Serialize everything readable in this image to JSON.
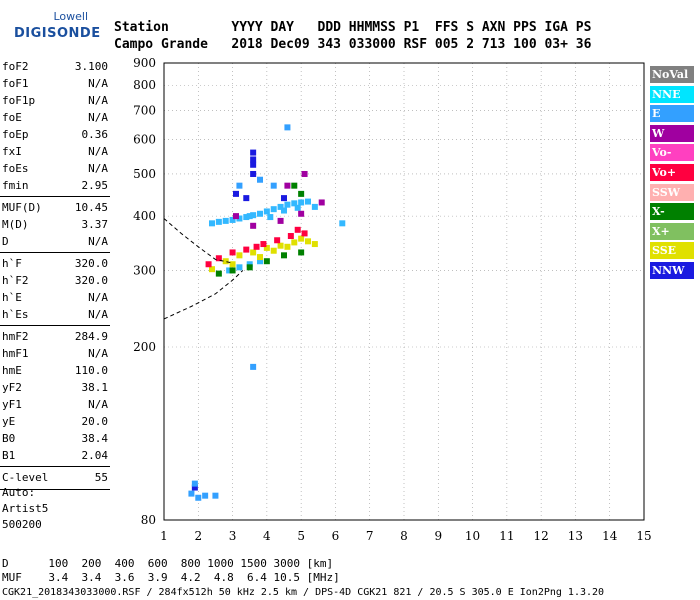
{
  "logo": {
    "line1": "Lowell",
    "line2": "DIGISONDE"
  },
  "header": {
    "row1": "Station        YYYY DAY   DDD HHMMSS P1  FFS S AXN PPS IGA PS",
    "row2": "Campo Grande   2018 Dec09 343 033000 RSF 005 2 713 100 03+ 36"
  },
  "params": [
    {
      "group": 1,
      "name": "foF2",
      "value": "3.100"
    },
    {
      "group": 1,
      "name": "foF1",
      "value": "N/A"
    },
    {
      "group": 1,
      "name": "foF1p",
      "value": "N/A"
    },
    {
      "group": 1,
      "name": "foE",
      "value": "N/A"
    },
    {
      "group": 1,
      "name": "foEp",
      "value": "0.36"
    },
    {
      "group": 1,
      "name": "fxI",
      "value": "N/A"
    },
    {
      "group": 1,
      "name": "foEs",
      "value": "N/A"
    },
    {
      "group": 1,
      "name": "fmin",
      "value": "2.95"
    },
    {
      "group": 2,
      "name": "MUF(D)",
      "value": "10.45"
    },
    {
      "group": 2,
      "name": "M(D)",
      "value": "3.37"
    },
    {
      "group": 2,
      "name": "D",
      "value": "N/A"
    },
    {
      "group": 3,
      "name": "h`F",
      "value": "320.0"
    },
    {
      "group": 3,
      "name": "h`F2",
      "value": "320.0"
    },
    {
      "group": 3,
      "name": "h`E",
      "value": "N/A"
    },
    {
      "group": 3,
      "name": "h`Es",
      "value": "N/A"
    },
    {
      "group": 4,
      "name": "hmF2",
      "value": "284.9"
    },
    {
      "group": 4,
      "name": "hmF1",
      "value": "N/A"
    },
    {
      "group": 4,
      "name": "hmE",
      "value": "110.0"
    },
    {
      "group": 4,
      "name": "yF2",
      "value": "38.1"
    },
    {
      "group": 4,
      "name": "yF1",
      "value": "N/A"
    },
    {
      "group": 4,
      "name": "yE",
      "value": "20.0"
    },
    {
      "group": 4,
      "name": "B0",
      "value": "38.4"
    },
    {
      "group": 4,
      "name": "B1",
      "value": "2.04"
    },
    {
      "group": 5,
      "name": "C-level",
      "value": "55"
    }
  ],
  "auto": [
    "Auto:",
    "Artist5",
    "500200"
  ],
  "legend": [
    {
      "label": "NoVal",
      "color": "#808080"
    },
    {
      "label": "NNE",
      "color": "#00e5ff"
    },
    {
      "label": "E",
      "color": "#33a0ff"
    },
    {
      "label": "W",
      "color": "#a000a0"
    },
    {
      "label": "Vo-",
      "color": "#ff40c0"
    },
    {
      "label": "Vo+",
      "color": "#ff0040"
    },
    {
      "label": "SSW",
      "color": "#ffb0b0"
    },
    {
      "label": "X-",
      "color": "#008000"
    },
    {
      "label": "X+",
      "color": "#80c060"
    },
    {
      "label": "SSE",
      "color": "#e0e000"
    },
    {
      "label": "NNW",
      "color": "#1a1ae0"
    }
  ],
  "footer": {
    "row1": "D      100  200  400  600  800 1000 1500 3000 [km]",
    "row2": "MUF    3.4  3.4  3.6  3.9  4.2  4.8  6.4 10.5 [MHz]",
    "row3": "CGK21_2018343033000.RSF / 284fx512h 50 kHz 2.5 km / DPS-4D CGK21 821 / 20.5 S 305.0 E Ion2Png 1.3.20"
  },
  "chart_data": {
    "type": "scatter",
    "title": "",
    "xlabel": "",
    "ylabel": "",
    "xlim": [
      1,
      15
    ],
    "ylim": [
      80,
      900
    ],
    "x_ticks": [
      1,
      2,
      3,
      4,
      5,
      6,
      7,
      8,
      9,
      10,
      11,
      12,
      13,
      14,
      15
    ],
    "y_ticks": [
      80,
      200,
      300,
      400,
      500,
      600,
      700,
      800,
      900
    ],
    "y_scale": "log",
    "grid": "dotted",
    "legend_position": "right",
    "clusters": [
      {
        "name": "NNE",
        "color": "#33b8ff",
        "points": [
          [
            2.4,
            385
          ],
          [
            2.6,
            388
          ],
          [
            2.8,
            390
          ],
          [
            3.0,
            392
          ],
          [
            3.2,
            395
          ],
          [
            3.4,
            398
          ],
          [
            3.6,
            402
          ],
          [
            3.8,
            405
          ],
          [
            4.0,
            410
          ],
          [
            4.2,
            415
          ],
          [
            4.4,
            420
          ],
          [
            4.6,
            425
          ],
          [
            4.8,
            428
          ],
          [
            5.0,
            430
          ],
          [
            5.2,
            432
          ],
          [
            3.5,
            400
          ],
          [
            4.1,
            398
          ],
          [
            4.5,
            412
          ],
          [
            4.9,
            418
          ],
          [
            5.4,
            420
          ],
          [
            6.2,
            385
          ],
          [
            2.9,
            300
          ],
          [
            3.2,
            305
          ],
          [
            3.5,
            310
          ],
          [
            3.8,
            315
          ]
        ]
      },
      {
        "name": "SSE",
        "color": "#e0e000",
        "points": [
          [
            2.4,
            302
          ],
          [
            2.8,
            315
          ],
          [
            3.2,
            325
          ],
          [
            3.6,
            330
          ],
          [
            4.0,
            338
          ],
          [
            4.4,
            342
          ],
          [
            4.8,
            348
          ],
          [
            5.2,
            350
          ],
          [
            5.4,
            345
          ],
          [
            3.0,
            310
          ],
          [
            4.2,
            333
          ],
          [
            4.6,
            340
          ],
          [
            5.0,
            355
          ],
          [
            3.8,
            322
          ]
        ]
      },
      {
        "name": "Vo+",
        "color": "#ff0040",
        "points": [
          [
            2.3,
            310
          ],
          [
            2.6,
            320
          ],
          [
            3.0,
            330
          ],
          [
            3.4,
            335
          ],
          [
            3.9,
            345
          ],
          [
            4.3,
            352
          ],
          [
            4.7,
            360
          ],
          [
            5.1,
            365
          ],
          [
            3.7,
            340
          ],
          [
            4.9,
            372
          ]
        ]
      },
      {
        "name": "X-",
        "color": "#008000",
        "points": [
          [
            2.6,
            295
          ],
          [
            3.0,
            300
          ],
          [
            3.5,
            305
          ],
          [
            4.0,
            315
          ],
          [
            4.5,
            325
          ],
          [
            5.0,
            330
          ],
          [
            4.8,
            470
          ],
          [
            5.0,
            450
          ]
        ]
      },
      {
        "name": "W",
        "color": "#a000a0",
        "points": [
          [
            3.1,
            400
          ],
          [
            3.6,
            380
          ],
          [
            4.4,
            390
          ],
          [
            5.0,
            405
          ],
          [
            5.6,
            430
          ],
          [
            4.6,
            470
          ],
          [
            5.1,
            500
          ]
        ]
      },
      {
        "name": "NNW",
        "color": "#1a1ae0",
        "points": [
          [
            3.6,
            560
          ],
          [
            3.6,
            540
          ],
          [
            3.6,
            525
          ],
          [
            3.6,
            500
          ],
          [
            3.1,
            450
          ],
          [
            3.4,
            440
          ],
          [
            4.5,
            440
          ],
          [
            1.9,
            95
          ]
        ]
      },
      {
        "name": "E",
        "color": "#33a0ff",
        "points": [
          [
            1.8,
            92
          ],
          [
            1.9,
            97
          ],
          [
            2.0,
            90
          ],
          [
            2.2,
            91
          ],
          [
            2.5,
            91
          ],
          [
            3.6,
            180
          ],
          [
            4.6,
            640
          ],
          [
            3.2,
            470
          ],
          [
            3.8,
            485
          ],
          [
            4.2,
            470
          ]
        ]
      }
    ],
    "curves": [
      {
        "name": "upper",
        "style": "dashed",
        "points": [
          [
            1.0,
            395
          ],
          [
            1.5,
            365
          ],
          [
            2.0,
            340
          ],
          [
            2.5,
            318
          ],
          [
            3.0,
            312
          ]
        ]
      },
      {
        "name": "lower",
        "style": "dashed",
        "points": [
          [
            1.0,
            232
          ],
          [
            1.8,
            248
          ],
          [
            2.5,
            265
          ],
          [
            3.0,
            285
          ],
          [
            3.3,
            300
          ]
        ]
      }
    ]
  }
}
